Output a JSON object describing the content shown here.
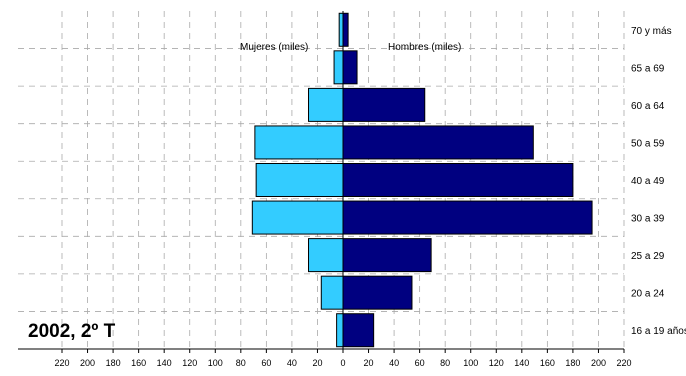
{
  "chart_data": {
    "type": "bar",
    "orientation": "horizontal-population-pyramid",
    "period_label": "2002, 2º T",
    "categories": [
      "16 a 19 años",
      "20 a 24",
      "25 a 29",
      "30 a 39",
      "40 a 49",
      "50 a 59",
      "60 a 64",
      "65 a 69",
      "70 y más"
    ],
    "series": [
      {
        "name": "Mujeres (miles)",
        "color": "#33ccff",
        "direction": "left",
        "values": [
          5,
          17,
          27,
          71,
          68,
          69,
          27,
          7,
          3
        ]
      },
      {
        "name": "Hombres (miles)",
        "color": "#000080",
        "direction": "right",
        "values": [
          24,
          54,
          69,
          195,
          180,
          149,
          64,
          11,
          4
        ]
      }
    ],
    "x_ticks": [
      220,
      200,
      180,
      160,
      140,
      120,
      100,
      80,
      60,
      40,
      20,
      0,
      20,
      40,
      60,
      80,
      100,
      120,
      140,
      160,
      180,
      200,
      220
    ],
    "xlim": [
      -220,
      220
    ],
    "grid": true,
    "grid_style": "dashed"
  }
}
